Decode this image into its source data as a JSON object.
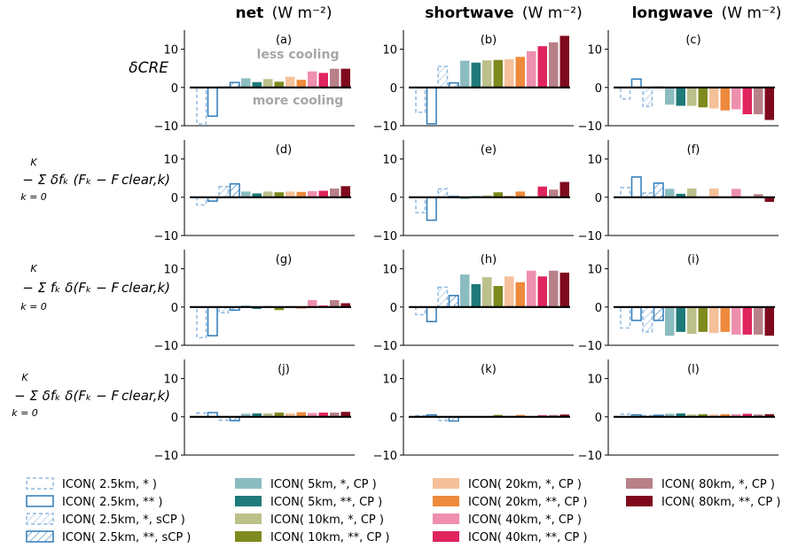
{
  "figure": {
    "column_titles": [
      {
        "bold": "net",
        "unit": "(W m⁻²)"
      },
      {
        "bold": "shortwave",
        "unit": "(W m⁻²)"
      },
      {
        "bold": "longwave",
        "unit": "(W m⁻²)"
      }
    ],
    "row_labels": [
      "δCRE",
      "− Σ δfₖ (Fₖ − F clear,k)",
      "− Σ fₖ δ(Fₖ − F clear,k)",
      "− Σ δfₖ δ(Fₖ − F clear,k)"
    ],
    "sum_upper": "K",
    "sum_lower": "k = 0",
    "annotations": {
      "upper": "less cooling",
      "lower": "more cooling"
    }
  },
  "chart_data": {
    "type": "bar",
    "ylim": [
      -10,
      15
    ],
    "yticks": [
      -10,
      0,
      10
    ],
    "categories": [
      "ICON( 2.5km, * )",
      "ICON( 2.5km, ** )",
      "ICON( 2.5km, *, sCP )",
      "ICON( 2.5km, **, sCP )",
      "ICON( 5km, *, CP )",
      "ICON( 5km, **, CP )",
      "ICON( 10km, *, CP )",
      "ICON( 10km, **, CP )",
      "ICON( 20km, *, CP )",
      "ICON( 20km, **, CP )",
      "ICON( 40km, *, CP )",
      "ICON( 40km, **, CP )",
      "ICON( 80km, *, CP )",
      "ICON( 80km, **, CP )"
    ],
    "legend": [
      {
        "label": "ICON( 2.5km, * )",
        "style": "dashed",
        "color": "#8fb8e0"
      },
      {
        "label": "ICON( 2.5km, ** )",
        "style": "outline",
        "color": "#2e7bb8"
      },
      {
        "label": "ICON( 2.5km, *,  sCP )",
        "style": "dashed-hatch",
        "color": "#8fb8e0"
      },
      {
        "label": "ICON( 2.5km, **, sCP )",
        "style": "hatch",
        "color": "#2e7bb8"
      },
      {
        "label": "ICON( 5km, *,  CP )",
        "style": "fill",
        "color": "#8bbcc0"
      },
      {
        "label": "ICON( 5km, **, CP )",
        "style": "fill",
        "color": "#1f7a7a"
      },
      {
        "label": "ICON( 10km, *,  CP )",
        "style": "fill",
        "color": "#bcc08a"
      },
      {
        "label": "ICON( 10km, **, CP )",
        "style": "fill",
        "color": "#7f8a1e"
      },
      {
        "label": "ICON( 20km, *,  CP )",
        "style": "fill",
        "color": "#f5c09a"
      },
      {
        "label": "ICON( 20km, **, CP )",
        "style": "fill",
        "color": "#ee8a3c"
      },
      {
        "label": "ICON( 40km, *,  CP )",
        "style": "fill",
        "color": "#ee8fae"
      },
      {
        "label": "ICON( 40km, **, CP )",
        "style": "fill",
        "color": "#e0245e"
      },
      {
        "label": "ICON( 80km, *,  CP )",
        "style": "fill",
        "color": "#b88088"
      },
      {
        "label": "ICON( 80km, **, CP )",
        "style": "fill",
        "color": "#7f0a1e"
      }
    ],
    "panels": [
      {
        "label": "(a)",
        "values": [
          -9.5,
          -7.5,
          0.1,
          1.3,
          2.4,
          1.4,
          2.2,
          1.5,
          2.8,
          2.0,
          4.2,
          3.8,
          4.9,
          4.9
        ]
      },
      {
        "label": "(b)",
        "values": [
          -6.5,
          -9.5,
          5.5,
          1.2,
          7.0,
          6.5,
          7.1,
          7.2,
          7.4,
          8.0,
          9.5,
          10.8,
          11.8,
          13.5
        ]
      },
      {
        "label": "(c)",
        "values": [
          -3.0,
          2.2,
          -5.0,
          0.1,
          -4.5,
          -4.8,
          -4.8,
          -5.2,
          -5.5,
          -6.0,
          -5.7,
          -7.0,
          -7.0,
          -8.5
        ]
      },
      {
        "label": "(d)",
        "values": [
          -2.0,
          -1.0,
          2.8,
          3.5,
          1.5,
          1.0,
          1.5,
          1.3,
          1.5,
          1.4,
          1.6,
          1.7,
          2.3,
          2.9
        ]
      },
      {
        "label": "(e)",
        "values": [
          -4.0,
          -6.0,
          2.2,
          0.2,
          -0.5,
          0.3,
          0.5,
          1.3,
          0.4,
          1.5,
          0.2,
          2.8,
          2.0,
          4.0
        ]
      },
      {
        "label": "(f)",
        "values": [
          2.5,
          5.3,
          1.1,
          3.7,
          2.2,
          0.9,
          2.3,
          0.1,
          2.3,
          0.2,
          2.2,
          0.1,
          0.8,
          -1.2
        ]
      },
      {
        "label": "(g)",
        "values": [
          -8.0,
          -7.5,
          -1.5,
          -0.8,
          0.4,
          -0.5,
          0.3,
          -0.8,
          0.3,
          -0.4,
          1.8,
          0.4,
          1.8,
          1.0
        ]
      },
      {
        "label": "(h)",
        "values": [
          -2.0,
          -3.8,
          5.2,
          3.0,
          8.5,
          6.0,
          7.8,
          5.5,
          8.0,
          6.5,
          9.5,
          8.0,
          9.5,
          9.0
        ]
      },
      {
        "label": "(i)",
        "values": [
          -5.5,
          -3.5,
          -6.5,
          -3.5,
          -7.5,
          -6.5,
          -7.0,
          -6.5,
          -6.8,
          -6.5,
          -7.2,
          -7.2,
          -7.2,
          -7.5
        ]
      },
      {
        "label": "(j)",
        "values": [
          1.0,
          1.1,
          -0.9,
          -1.0,
          0.8,
          0.9,
          0.9,
          1.1,
          0.9,
          1.2,
          1.0,
          1.1,
          1.1,
          1.3
        ]
      },
      {
        "label": "(k)",
        "values": [
          0.3,
          0.5,
          -1.0,
          -1.1,
          -0.3,
          0.0,
          0.2,
          0.5,
          0.3,
          0.5,
          0.2,
          0.4,
          0.5,
          0.6
        ]
      },
      {
        "label": "(l)",
        "values": [
          0.7,
          0.5,
          0.3,
          0.4,
          0.8,
          0.9,
          0.6,
          0.7,
          0.6,
          0.7,
          0.7,
          0.8,
          0.6,
          0.7
        ]
      }
    ]
  }
}
